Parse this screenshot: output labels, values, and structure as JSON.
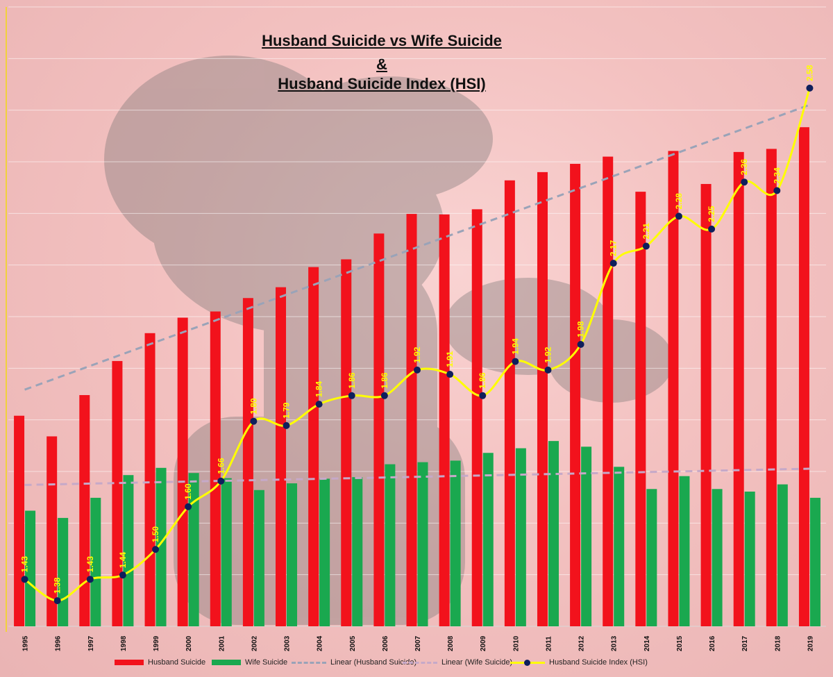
{
  "title": {
    "line1": "Husband Suicide vs Wife Suicide",
    "line2": "&",
    "line3": "Husband Suicide Index (HSI)"
  },
  "legend": {
    "husband": "Husband Suicide",
    "wife": "Wife Suicide",
    "linear_husband": "Linear (Husband Suicide)",
    "linear_wife": "Linear (Wife Suicide)",
    "hsi": "Husband Suicide Index (HSI)"
  },
  "colors": {
    "husband": "#f2121c",
    "wife": "#1aa84f",
    "hsi_line": "#ffff00",
    "hsi_marker": "#0f1f5c",
    "trend_husband": "#9aa3b8",
    "trend_wife": "#c6a9c8"
  },
  "chart_data": {
    "type": "bar",
    "categories": [
      "1995",
      "1996",
      "1997",
      "1998",
      "1999",
      "2000",
      "2001",
      "2002",
      "2003",
      "2004",
      "2005",
      "2006",
      "2007",
      "2008",
      "2009",
      "2010",
      "2011",
      "2012",
      "2013",
      "2014",
      "2015",
      "2016",
      "2017",
      "2018",
      "2019"
    ],
    "series": [
      {
        "name": "Husband Suicide",
        "type": "bar",
        "values": [
          60800,
          56800,
          64800,
          71400,
          76800,
          79800,
          81000,
          83600,
          85700,
          89600,
          91100,
          96100,
          99900,
          99800,
          100800,
          106400,
          108000,
          109600,
          111000,
          104200,
          112100,
          105700,
          111900,
          112500,
          116700
        ]
      },
      {
        "name": "Wife Suicide",
        "type": "bar",
        "values": [
          42400,
          41000,
          44900,
          49300,
          50700,
          49700,
          48700,
          46400,
          47700,
          48600,
          48900,
          51400,
          51800,
          52100,
          53600,
          54500,
          55900,
          54800,
          50900,
          46600,
          49100,
          46600,
          46100,
          47500,
          44900
        ]
      },
      {
        "name": "Husband Suicide Index (HSI)",
        "type": "line",
        "values": [
          1.43,
          1.38,
          1.43,
          1.44,
          1.5,
          1.6,
          1.66,
          1.8,
          1.79,
          1.84,
          1.86,
          1.86,
          1.92,
          1.91,
          1.86,
          1.94,
          1.92,
          1.98,
          2.17,
          2.21,
          2.28,
          2.25,
          2.36,
          2.34,
          2.58
        ]
      },
      {
        "name": "Linear (Husband Suicide)",
        "type": "trendline",
        "of": "Husband Suicide"
      },
      {
        "name": "Linear (Wife Suicide)",
        "type": "trendline",
        "of": "Wife Suicide"
      }
    ],
    "y_primary_range": [
      20000,
      140000
    ],
    "y_secondary_range": [
      1.32,
      2.77
    ],
    "y_axis_labels_shown": false,
    "gridlines": true,
    "data_labels": "HSI values printed above points, rotated vertically",
    "legend_position": "bottom"
  }
}
